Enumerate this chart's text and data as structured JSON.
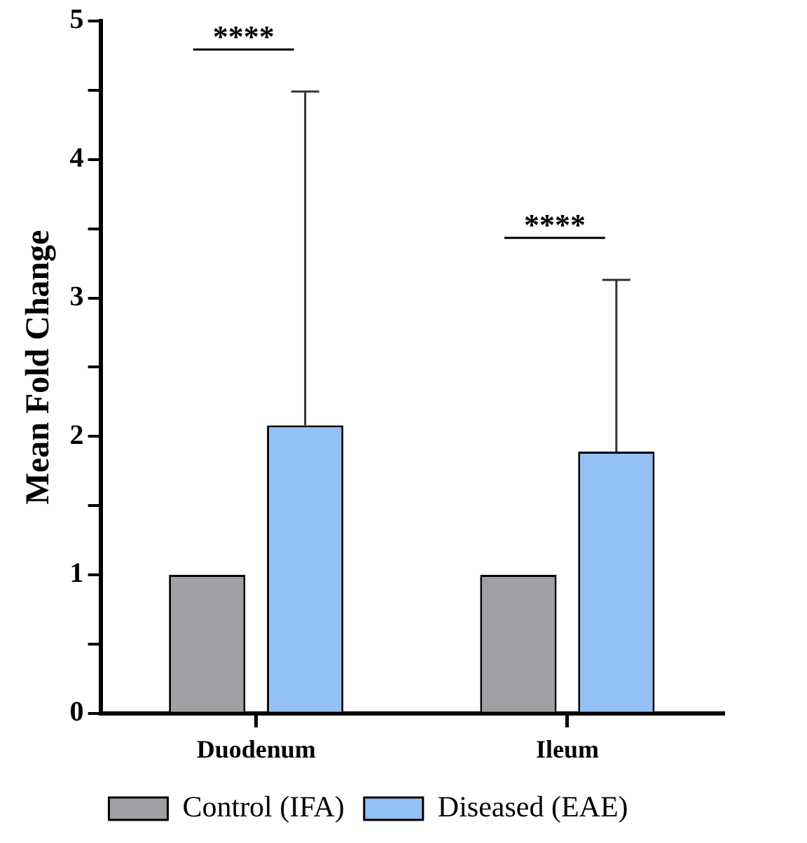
{
  "chart_data": {
    "type": "bar",
    "ylabel": "Mean Fold Change",
    "categories": [
      "Duodenum",
      "Ileum"
    ],
    "series": [
      {
        "name": "Control (IFA)",
        "color": "#a0a0a4",
        "values": [
          1,
          1
        ]
      },
      {
        "name": "Diseased (EAE)",
        "color": "#93c0f5",
        "values": [
          2.08,
          1.89
        ],
        "errors": [
          [
            2.08,
            4.49
          ],
          [
            1.89,
            3.13
          ]
        ]
      }
    ],
    "ylim": [
      0,
      5
    ],
    "yticks": [
      0,
      {
        "value": 0.5,
        "label": null
      },
      1,
      {
        "value": 1.5,
        "label": null
      },
      2,
      {
        "value": 2.5,
        "label": null
      },
      3,
      {
        "value": 3.5,
        "label": null
      },
      4,
      {
        "value": 4.5,
        "label": null
      },
      5
    ],
    "annotations": [
      "****",
      "****"
    ],
    "grid": false,
    "legend": "bottom"
  }
}
